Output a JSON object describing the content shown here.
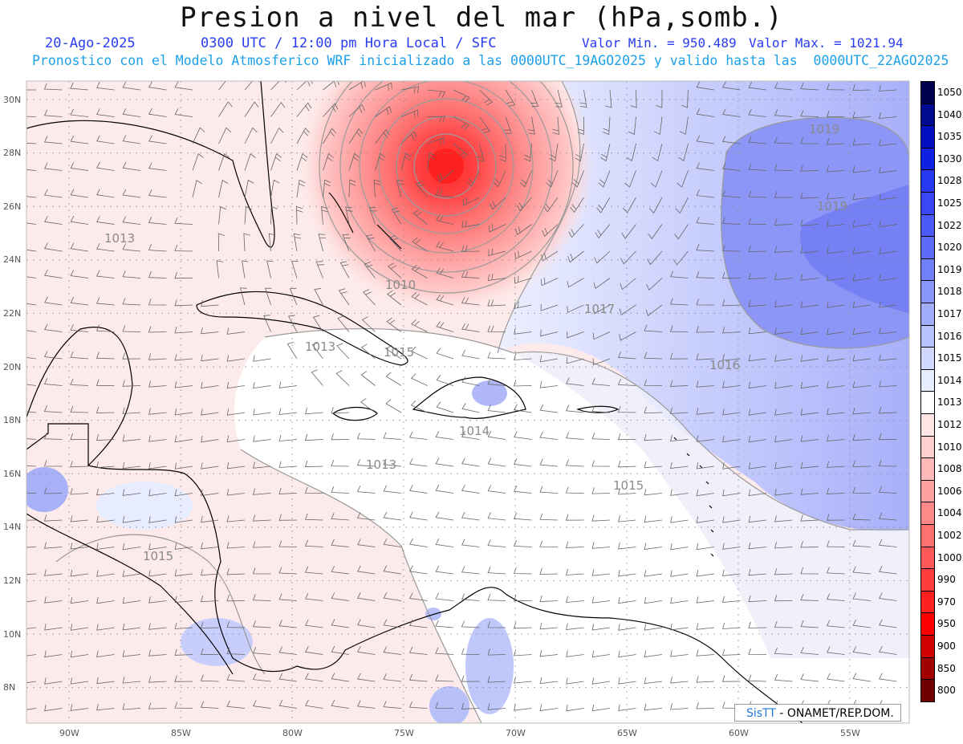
{
  "title": "Presion a nivel del mar (hPa,somb.)",
  "date": "20-Ago-2025",
  "time": "0300 UTC / 12:00 pm Hora Local / SFC",
  "valmin": "Valor Min. = 950.489",
  "valmax": "Valor Max. = 1021.94",
  "forecast": "Pronostico con el Modelo Atmosferico WRF inicializado a las 0000UTC_19AGO2025 y valido hasta las  0000UTC_22AGO2025",
  "credit_brand": "SisTT",
  "credit_text": " - ONAMET/REP.DOM.",
  "lat_labels": [
    "30N",
    "28N",
    "26N",
    "24N",
    "22N",
    "20N",
    "18N",
    "16N",
    "14N",
    "12N",
    "10N",
    "8N"
  ],
  "lon_labels": [
    "90W",
    "85W",
    "80W",
    "75W",
    "70W",
    "65W",
    "60W",
    "55W"
  ],
  "colorbar": {
    "levels": [
      "1050",
      "1040",
      "1035",
      "1030",
      "1028",
      "1025",
      "1022",
      "1020",
      "1019",
      "1018",
      "1017",
      "1016",
      "1015",
      "1014",
      "1013",
      "1012",
      "1010",
      "1008",
      "1006",
      "1004",
      "1002",
      "1000",
      "990",
      "970",
      "950",
      "900",
      "850",
      "800"
    ],
    "colors": [
      "#000050",
      "#000a90",
      "#0010c0",
      "#1020e0",
      "#2638f0",
      "#3848f4",
      "#4a5af6",
      "#5c6cf8",
      "#7080fa",
      "#8896fb",
      "#a0acfc",
      "#b8c2fd",
      "#d0d8fe",
      "#e8ecff",
      "#ffffff",
      "#ffe6e6",
      "#ffd0d0",
      "#ffb8b8",
      "#ffa0a0",
      "#ff8888",
      "#ff7070",
      "#ff5858",
      "#ff3c3c",
      "#ff2020",
      "#ff0000",
      "#d00000",
      "#a00000",
      "#700000"
    ]
  },
  "contour_labels": [
    "1013",
    "1010",
    "1017",
    "1016",
    "1015",
    "1013",
    "1014",
    "1013",
    "1015",
    "1015",
    "1019",
    "1019"
  ],
  "extremes_hPa": {
    "min": 950.489,
    "max": 1021.94
  }
}
